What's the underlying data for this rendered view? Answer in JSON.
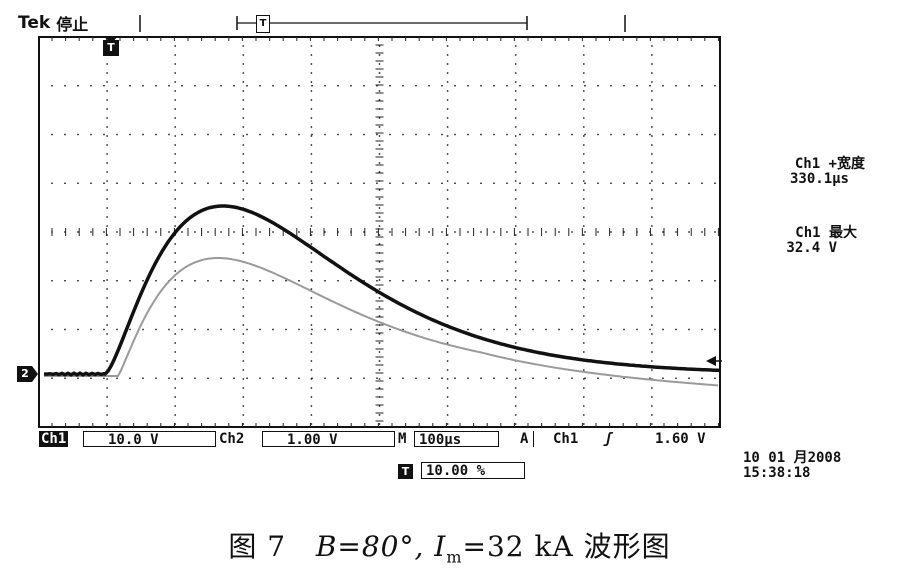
{
  "header": {
    "brand": "Tek",
    "status": "停止",
    "trigger_marker": "T",
    "position_marker": "T"
  },
  "screen": {
    "ch2_marker": "2",
    "trigger_level_marker": "◄"
  },
  "measurements": [
    {
      "label": "Ch1 +宽度",
      "value": "330.1µs"
    },
    {
      "label": "Ch1 最大",
      "value": "32.4 V"
    }
  ],
  "status_bar": {
    "ch1_label": "Ch1",
    "ch1_scale": "10.0 V",
    "ch2_label": "Ch2",
    "ch2_scale": "1.00 V",
    "timebase_label": "M",
    "timebase_value": "100µs",
    "trigger_mode": "A",
    "trigger_source": "Ch1",
    "trigger_slope_icon": "rising-edge-icon",
    "trigger_slope_glyph": "ʃ",
    "trigger_level": "1.60 V",
    "trigger_pos_icon": "T",
    "trigger_pos_value": "10.00 %"
  },
  "timestamp": {
    "date": "10 01 月2008",
    "time": "15:38:18"
  },
  "caption": {
    "figure_no": "图 7",
    "formula": "B=80°, I",
    "subscript": "m",
    "rest": "=32 kA 波形图"
  },
  "colors": {
    "trace_ch1": "#111111",
    "trace_ch2": "#9a9a9a",
    "grid": "#222222",
    "background": "#ffffff"
  }
}
